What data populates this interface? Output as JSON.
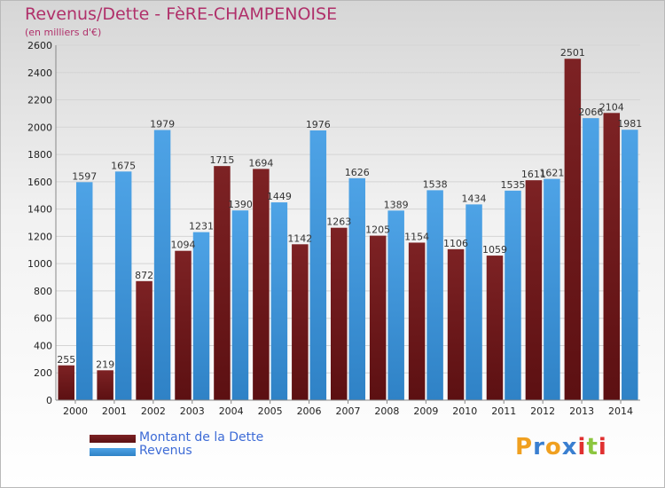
{
  "title": "Revenus/Dette - FèRE-CHAMPENOISE",
  "subtitle": "(en milliers d'€)",
  "colors": {
    "dette": "#7d2224",
    "dette_dark": "#5c1012",
    "revenus": "#4ea3e6",
    "revenus_dark": "#2f82c6",
    "grid": "#d4d4d4",
    "axis_text": "#222222",
    "title": "#b0306a",
    "legend_text": "#3d6bd6"
  },
  "legend": {
    "dette_label": "Montant de la Dette",
    "revenus_label": "Revenus"
  },
  "logo": {
    "text": "Proxiti",
    "letters": [
      "P",
      "r",
      "o",
      "x",
      "i",
      "t",
      "i"
    ],
    "letter_colors": [
      "#f0a020",
      "#3a7fd0",
      "#f0a020",
      "#3a7fd0",
      "#e03030",
      "#8cc63f",
      "#e03030"
    ]
  },
  "chart_data": {
    "type": "bar",
    "title": "Revenus/Dette - FèRE-CHAMPENOISE",
    "ylabel": "(en milliers d'€)",
    "xlabel": "",
    "categories": [
      "2000",
      "2001",
      "2002",
      "2003",
      "2004",
      "2005",
      "2006",
      "2007",
      "2008",
      "2009",
      "2010",
      "2011",
      "2012",
      "2013",
      "2014"
    ],
    "series": [
      {
        "name": "Montant de la Dette",
        "values": [
          255,
          219,
          872,
          1094,
          1715,
          1694,
          1142,
          1263,
          1205,
          1154,
          1106,
          1059,
          1611,
          2501,
          2104
        ]
      },
      {
        "name": "Revenus",
        "values": [
          1597,
          1675,
          1979,
          1231,
          1390,
          1449,
          1976,
          1626,
          1389,
          1538,
          1434,
          1535,
          1621,
          2066,
          1981
        ]
      }
    ],
    "ylim": [
      0,
      2600
    ],
    "yticks": [
      0,
      200,
      400,
      600,
      800,
      1000,
      1200,
      1400,
      1600,
      1800,
      2000,
      2200,
      2400,
      2600
    ],
    "grid": true,
    "legend_position": "bottom-left"
  }
}
